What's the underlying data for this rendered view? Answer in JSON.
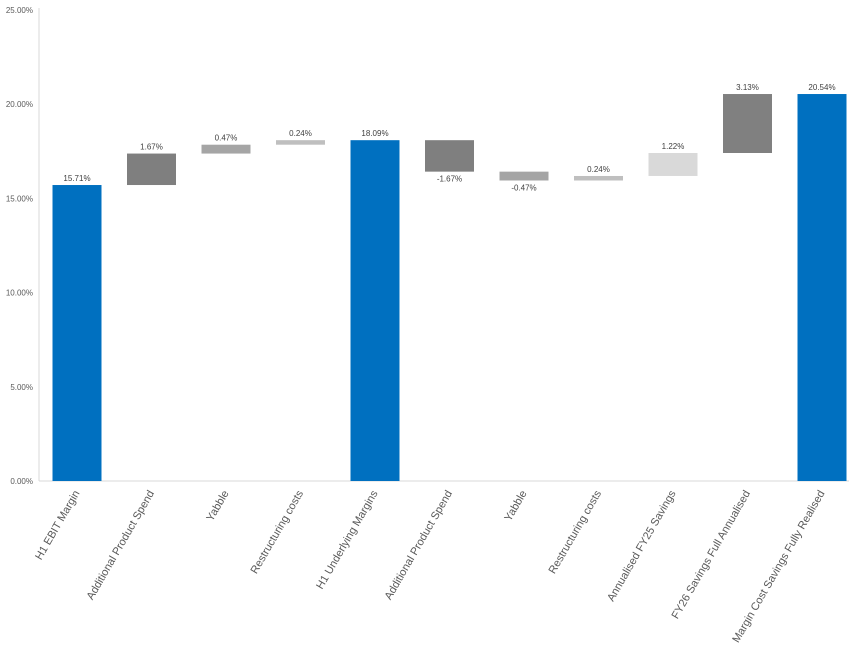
{
  "chart_data": {
    "type": "bar",
    "subtype": "waterfall",
    "title": "",
    "xlabel": "",
    "ylabel": "",
    "ylim": [
      0,
      25
    ],
    "y_ticks": [
      "0.00%",
      "5.00%",
      "10.00%",
      "15.00%",
      "20.00%",
      "25.00%"
    ],
    "grid": false,
    "legend": "none",
    "bars": [
      {
        "category": "H1 EBIT Margin",
        "start": 0,
        "end": 15.71,
        "label": "15.71%",
        "kind": "total",
        "color": "#0070c0"
      },
      {
        "category": "Additional Product Spend",
        "start": 15.71,
        "end": 17.38,
        "label": "1.67%",
        "kind": "step",
        "color": "#7f7f7f"
      },
      {
        "category": "Yabble",
        "start": 17.38,
        "end": 17.85,
        "label": "0.47%",
        "kind": "step",
        "color": "#a5a5a5"
      },
      {
        "category": "Restructuring costs",
        "start": 17.85,
        "end": 18.09,
        "label": "0.24%",
        "kind": "step",
        "color": "#bfbfbf"
      },
      {
        "category": "H1 Underlying Margins",
        "start": 0,
        "end": 18.09,
        "label": "18.09%",
        "kind": "total",
        "color": "#0070c0"
      },
      {
        "category": "Additional Product Spend",
        "start": 18.09,
        "end": 16.42,
        "label": "-1.67%",
        "kind": "step",
        "color": "#7f7f7f"
      },
      {
        "category": "Yabble",
        "start": 16.42,
        "end": 15.95,
        "label": "-0.47%",
        "kind": "step",
        "color": "#a5a5a5"
      },
      {
        "category": "Restructuring costs",
        "start": 15.95,
        "end": 16.19,
        "label": "0.24%",
        "kind": "step",
        "color": "#bfbfbf"
      },
      {
        "category": "Annualised FY25 Savings",
        "start": 16.19,
        "end": 17.41,
        "label": "1.22%",
        "kind": "step",
        "color": "#d9d9d9"
      },
      {
        "category": "FY26 Savings Full Annualised",
        "start": 17.41,
        "end": 20.54,
        "label": "3.13%",
        "kind": "step",
        "color": "#808080"
      },
      {
        "category": "Margin Cost Savings Fully Realised",
        "start": 0,
        "end": 20.54,
        "label": "20.54%",
        "kind": "total",
        "color": "#0070c0"
      }
    ]
  }
}
